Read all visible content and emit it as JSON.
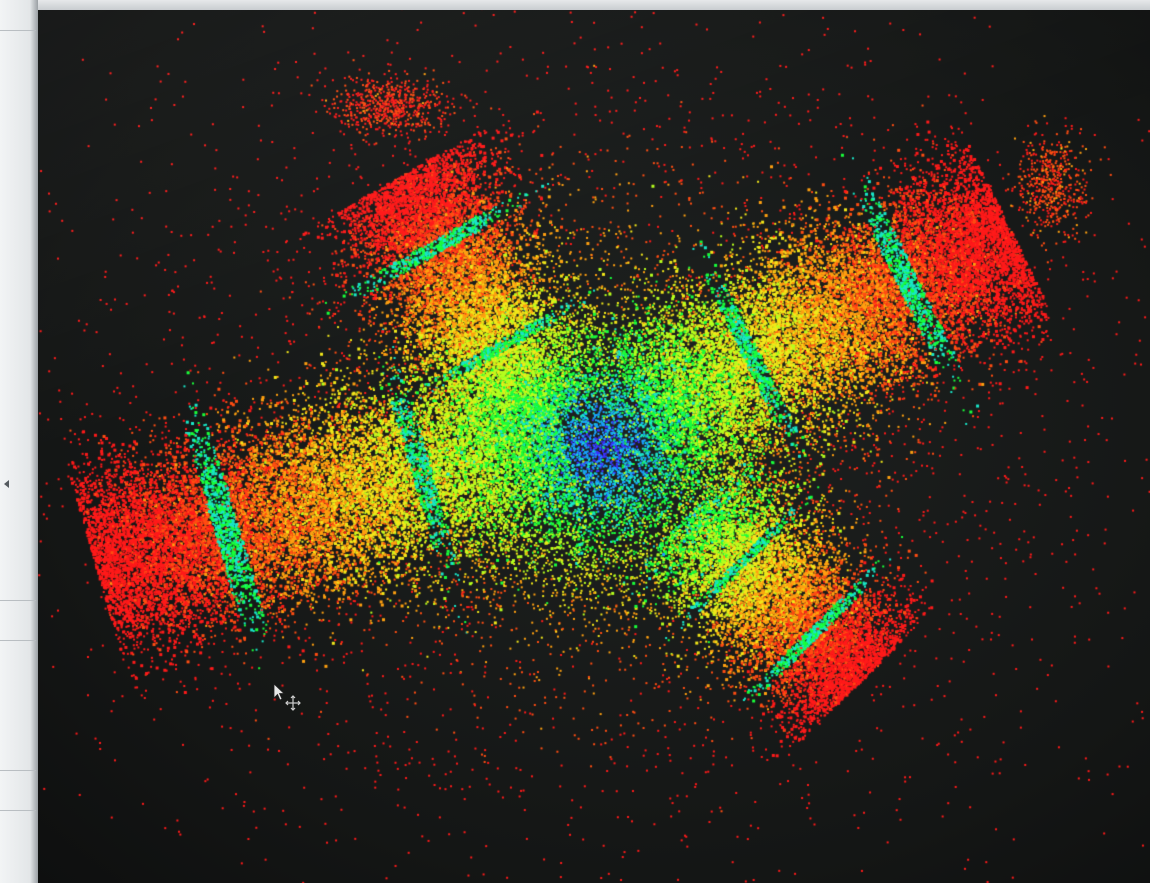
{
  "scene": {
    "description_kind": "point-cloud-viewer",
    "background_color": "#141615",
    "palette": [
      "#ff1a1a",
      "#ff4d12",
      "#ffa010",
      "#f2e81a",
      "#b6ff1e",
      "#19ff3a",
      "#19e6c8",
      "#1aa0ff",
      "#3c32ff",
      "#b41eff"
    ]
  },
  "icons": {
    "cursor": "arrow-pointer-icon",
    "move": "move-cross-icon",
    "collapse": "chevron-left-icon"
  }
}
